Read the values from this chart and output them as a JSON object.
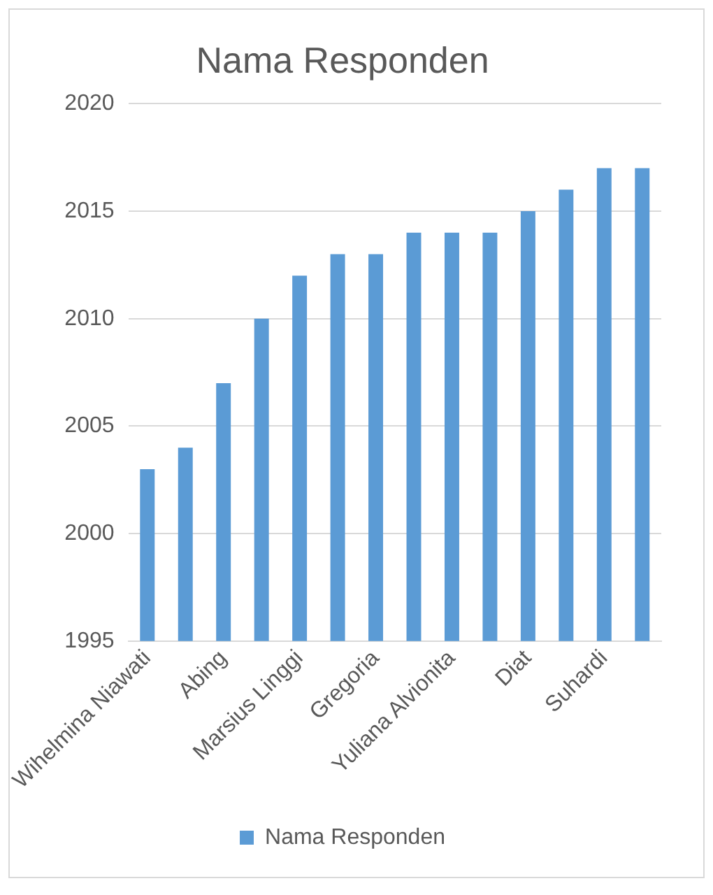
{
  "chart_data": {
    "type": "bar",
    "title": "Nama Responden",
    "categories": [
      "Wihelmina Niawati",
      null,
      "Abing",
      null,
      "Marsius Linggi",
      null,
      "Gregoria",
      null,
      "Yuliana Alvionita",
      null,
      "Diat",
      null,
      "Suhardi",
      null
    ],
    "series": [
      {
        "name": "Nama Responden",
        "color": "#5b9bd5",
        "values": [
          2003,
          2004,
          2007,
          2010,
          2012,
          2013,
          2013,
          2014,
          2014,
          2014,
          2015,
          2016,
          2017,
          2017
        ]
      }
    ],
    "ylim": [
      1995,
      2020
    ],
    "yticks": [
      1995,
      2000,
      2005,
      2010,
      2015,
      2020
    ],
    "grid": "y",
    "legend": "bottom"
  }
}
